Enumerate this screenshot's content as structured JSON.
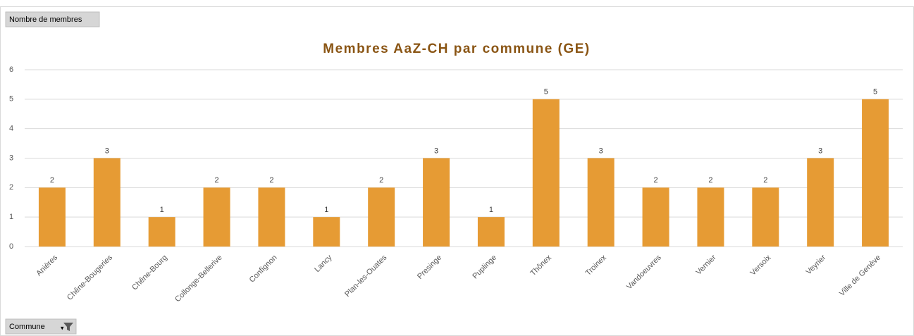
{
  "chart_data": {
    "type": "bar",
    "title": "Membres AaZ-CH par commune (GE)",
    "value_field_button": "Nombre de membres",
    "axis_field_button": "Commune",
    "categories": [
      "Anières",
      "Chêne-Bougeries",
      "Chêne-Bourg",
      "Collonge-Bellerive",
      "Confignon",
      "Lancy",
      "Plan-les-Ouates",
      "Presinge",
      "Puplinge",
      "Thônex",
      "Troinex",
      "Vandoeuvres",
      "Vernier",
      "Versoix",
      "Veyrier",
      "Ville de Genève"
    ],
    "values": [
      2,
      3,
      1,
      2,
      2,
      1,
      2,
      3,
      1,
      5,
      3,
      2,
      2,
      2,
      3,
      5
    ],
    "color": "#e69b34",
    "ylim": [
      0,
      6
    ],
    "yticks": [
      0,
      1,
      2,
      3,
      4,
      5,
      6
    ],
    "grid": true
  }
}
